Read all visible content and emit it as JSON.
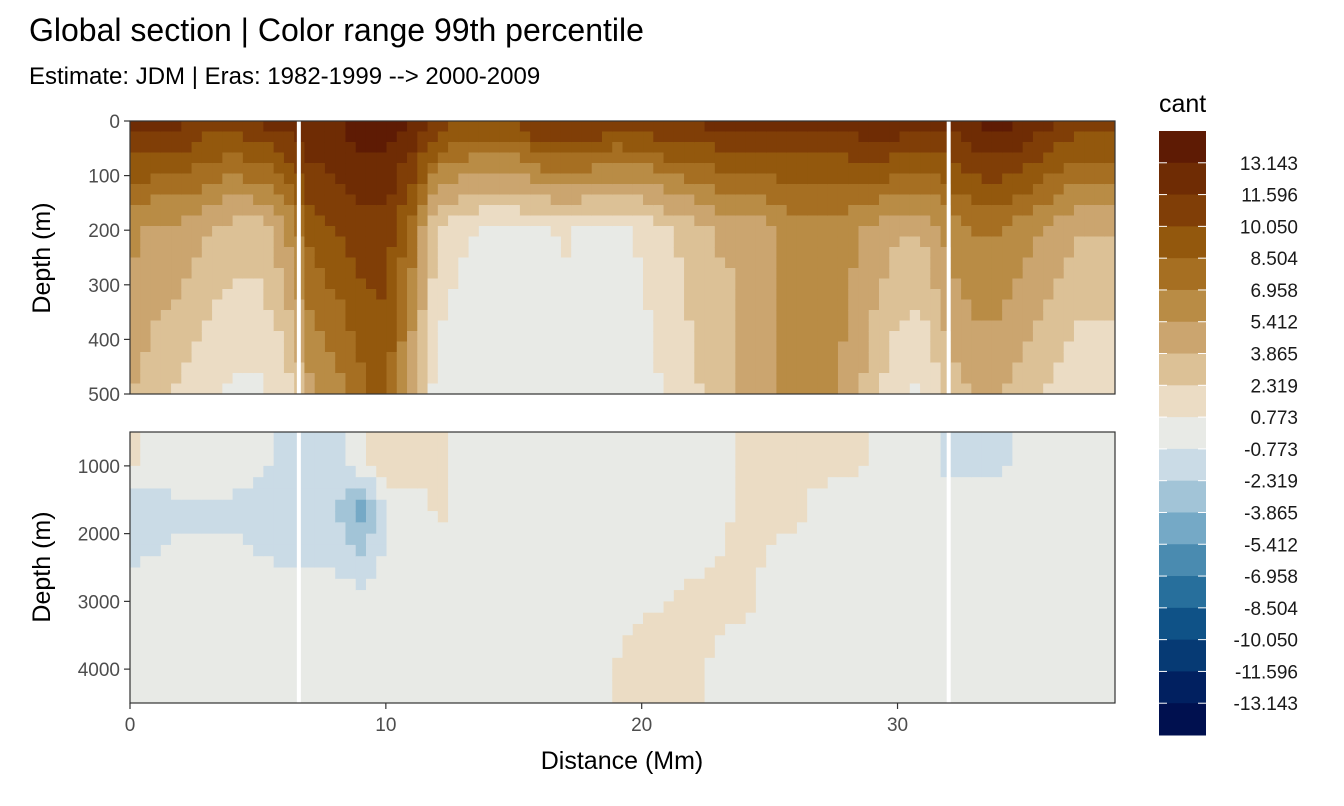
{
  "chart_data": {
    "type": "heatmap",
    "title": "Global section | Color range 99th percentile",
    "subtitle": "Estimate: JDM  | Eras: 1982-1999 --> 2000-2009",
    "xlabel": "Distance (Mm)",
    "ylabel": "Depth (m)",
    "x_ticks": [
      "0",
      "10",
      "20",
      "30"
    ],
    "xlim": [
      0,
      38.5
    ],
    "panels": [
      {
        "name": "upper",
        "ylim": [
          0,
          500
        ],
        "y_reversed": true,
        "y_ticks": [
          "0",
          "100",
          "200",
          "300",
          "400",
          "500"
        ],
        "y_tick_values": [
          0,
          100,
          200,
          300,
          400,
          500
        ]
      },
      {
        "name": "lower",
        "ylim": [
          500,
          4500
        ],
        "y_reversed": true,
        "y_ticks": [
          "1000",
          "2000",
          "3000",
          "4000"
        ],
        "y_tick_values": [
          1000,
          2000,
          3000,
          4000
        ]
      }
    ],
    "gaps_x": [
      6.6,
      32.0
    ],
    "legend": {
      "title": "cant",
      "placement": "right",
      "breaks": [
        "13.143",
        "11.596",
        "10.050",
        "8.504",
        "6.958",
        "5.412",
        "3.865",
        "2.319",
        "0.773",
        "-0.773",
        "-2.319",
        "-3.865",
        "-5.412",
        "-6.958",
        "-8.504",
        "-10.050",
        "-11.596",
        "-13.143"
      ],
      "colors": [
        "#5e1b04",
        "#6f2c04",
        "#803e07",
        "#93580d",
        "#a66f22",
        "#b98c45",
        "#cba56f",
        "#dcc196",
        "#ebdcc4",
        "#e8eae6",
        "#cadbe6",
        "#a2c4d7",
        "#75a9c6",
        "#4a8bb0",
        "#276f9c",
        "#0f5287",
        "#063a74",
        "#012060",
        "#00104f"
      ]
    },
    "profiles_upper": {
      "x": [
        0,
        1,
        2,
        3,
        4,
        5,
        6,
        6.6,
        7,
        8,
        9,
        10,
        11,
        12,
        13,
        14,
        15,
        16,
        17,
        18,
        19,
        20,
        21,
        22,
        23,
        24,
        25,
        26,
        27,
        28,
        29,
        30,
        31,
        32,
        33,
        34,
        35,
        36,
        37,
        38
      ],
      "depth_0m": [
        12,
        12,
        12,
        11,
        11,
        12,
        12,
        13,
        13,
        13,
        14,
        14,
        13,
        11,
        10,
        10,
        10,
        12,
        12,
        12,
        11,
        11,
        12,
        12,
        12,
        12,
        12,
        12,
        12,
        12,
        13,
        13,
        12,
        12,
        13,
        14,
        13,
        12,
        11,
        11
      ],
      "depth_200m": [
        6,
        5,
        5,
        4,
        3,
        3,
        5,
        7,
        9,
        10,
        11,
        11,
        8,
        2,
        1,
        0.5,
        0.5,
        0.5,
        1,
        0.5,
        0.5,
        1,
        2,
        3,
        4,
        4,
        5,
        6,
        6,
        6,
        5,
        4,
        4,
        6,
        7,
        7,
        6,
        5,
        4,
        4
      ],
      "depth_500m": [
        4,
        3,
        2,
        1,
        0.5,
        0.5,
        1,
        3,
        5,
        6,
        8,
        9,
        4,
        0,
        -0.5,
        -0.5,
        -0.5,
        -0.5,
        -0.5,
        -0.5,
        0,
        0,
        1,
        2,
        3,
        4,
        5,
        6,
        6,
        5,
        3,
        1,
        0.5,
        3,
        4,
        4,
        3,
        2,
        1,
        1
      ]
    },
    "profiles_lower": {
      "x": [
        0,
        2,
        4,
        6,
        8,
        9,
        10,
        12,
        14,
        16,
        18,
        20,
        22,
        24,
        26,
        28,
        30,
        32,
        34,
        36,
        38
      ],
      "depth_1000m": [
        1,
        0,
        0,
        -1,
        -1,
        0,
        2,
        1,
        0,
        0,
        0,
        0,
        0,
        1,
        1,
        1,
        0.5,
        -1,
        -1,
        0,
        0
      ],
      "depth_1600m": [
        -2,
        -1,
        -1,
        -2,
        -2,
        -5,
        -1,
        1,
        0,
        0,
        0,
        0,
        0,
        1,
        1,
        0,
        0,
        0,
        0,
        0,
        0
      ],
      "depth_3000m": [
        0,
        0,
        0,
        0,
        0,
        0,
        0,
        0,
        0,
        0,
        0,
        0.5,
        1,
        1,
        0,
        0,
        0,
        0,
        0,
        0,
        0
      ],
      "depth_4200m": [
        0,
        0,
        0,
        0,
        0,
        0,
        0,
        0,
        0,
        0,
        0,
        2,
        1,
        0,
        0,
        0,
        0,
        0.5,
        0.5,
        0,
        0
      ]
    }
  }
}
